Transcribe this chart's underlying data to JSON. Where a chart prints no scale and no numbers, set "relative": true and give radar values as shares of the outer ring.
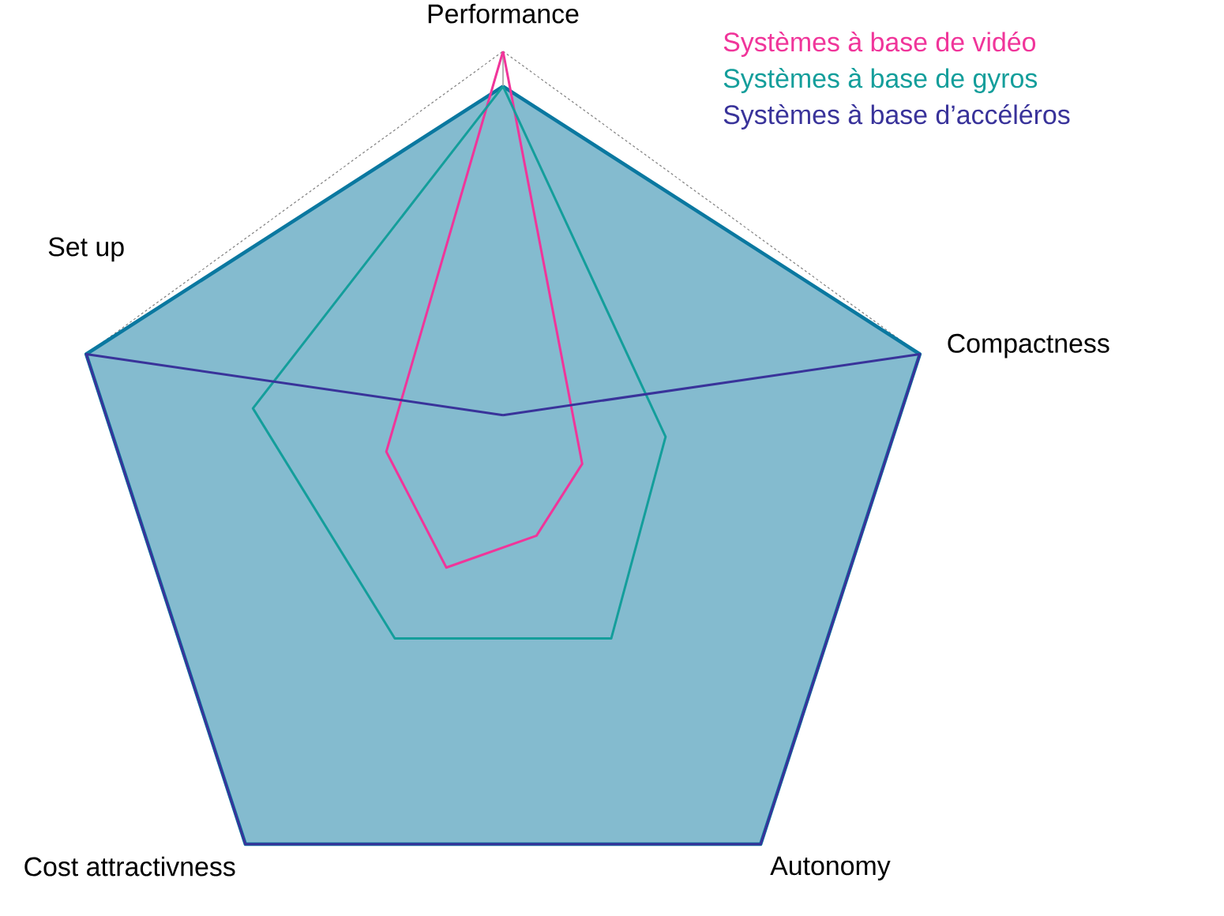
{
  "chart_data": {
    "type": "radar",
    "relative": true,
    "categories": [
      "Performance",
      "Compactness",
      "Autonomy",
      "Cost attractivness",
      "Set up"
    ],
    "grid": true,
    "series": [
      {
        "type": "area",
        "color": "#0a78a0",
        "values": [
          0.92,
          1.0,
          1.0,
          1.0,
          1.0
        ]
      },
      {
        "name": "Systèmes à base de vidéo",
        "color": "#f0359a",
        "values": [
          1.0,
          0.19,
          0.13,
          0.22,
          0.28
        ]
      },
      {
        "name": "Systèmes à base de gyros",
        "color": "#149e9b",
        "values": [
          0.92,
          0.39,
          0.42,
          0.42,
          0.6
        ]
      },
      {
        "name": "Systèmes à base d’accéléros",
        "color": "#39339a",
        "values": [
          0.17,
          1.0,
          1.0,
          1.0,
          1.0
        ]
      }
    ]
  }
}
